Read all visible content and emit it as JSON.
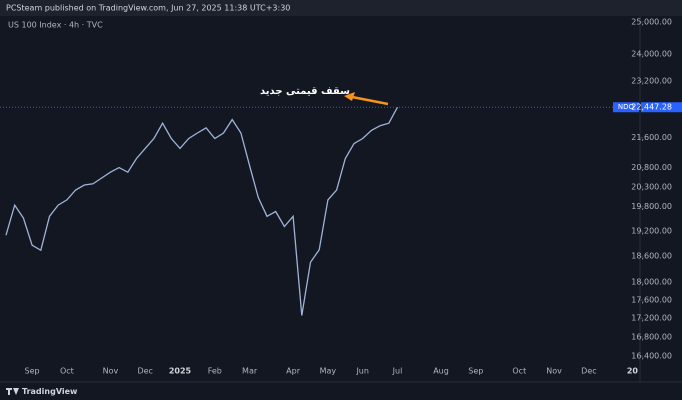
{
  "chart_data": {
    "type": "line",
    "header": "PCSteam published on TradingView.com, Jun 27, 2025 11:38 UTC+3:30",
    "title": "US 100 Index · 4h · TVC",
    "brand": "TradingView",
    "annotation": "سقف قیمتی جدید",
    "log_scale": true,
    "grid": false,
    "categories": [
      null,
      null,
      null,
      "Sep",
      null,
      null,
      null,
      "Oct",
      null,
      null,
      null,
      null,
      "Nov",
      null,
      null,
      null,
      "Dec",
      null,
      null,
      null,
      "2025",
      null,
      null,
      null,
      "Feb",
      null,
      null,
      null,
      "Mar",
      null,
      null,
      null,
      null,
      "Apr",
      null,
      null,
      null,
      "May",
      null,
      null,
      null,
      "Jun",
      null,
      null,
      null,
      "Jul",
      null,
      null,
      null,
      null,
      "Aug",
      null,
      null,
      null,
      "Sep",
      null,
      null,
      null,
      null,
      "Oct",
      null,
      null,
      null,
      "Nov",
      null,
      null,
      null,
      "Dec",
      null,
      null,
      null,
      null,
      "20"
    ],
    "series": [
      {
        "name": "NDQ",
        "color": "#9fb3d9",
        "values": [
          19100,
          19840,
          19520,
          18860,
          18740,
          19560,
          19840,
          19970,
          20220,
          20350,
          20380,
          20530,
          20680,
          20800,
          20680,
          21040,
          21310,
          21580,
          22000,
          21580,
          21310,
          21580,
          21730,
          21870,
          21580,
          21730,
          22100,
          21730,
          20850,
          20030,
          19560,
          19680,
          19310,
          19560,
          17260,
          18460,
          18750,
          19970,
          20220,
          21040,
          21440,
          21580,
          21800,
          21930,
          22000,
          22447.28,
          null,
          null,
          null,
          null,
          null,
          null,
          null,
          null,
          null,
          null,
          null,
          null,
          null,
          null,
          null,
          null,
          null,
          null,
          null,
          null,
          null,
          null,
          null,
          null,
          null,
          null,
          null
        ]
      }
    ],
    "price_line": {
      "name": "NDQ",
      "value": 22447.28,
      "label": "22,447.28"
    },
    "ylim": [
      15950,
      25250
    ],
    "yticks": [
      {
        "value": 16400,
        "label": "16,400.00"
      },
      {
        "value": 16800,
        "label": "16,800.00"
      },
      {
        "value": 17200,
        "label": "17,200.00"
      },
      {
        "value": 17600,
        "label": "17,600.00"
      },
      {
        "value": 18000,
        "label": "18,000.00"
      },
      {
        "value": 18600,
        "label": "18,600.00"
      },
      {
        "value": 19200,
        "label": "19,200.00"
      },
      {
        "value": 19800,
        "label": "19,800.00"
      },
      {
        "value": 20300,
        "label": "20,300.00"
      },
      {
        "value": 20800,
        "label": "20,800.00"
      },
      {
        "value": 21600,
        "label": "21,600.00"
      },
      {
        "value": 23200,
        "label": "23,200.00"
      },
      {
        "value": 24000,
        "label": "24,000.00"
      },
      {
        "value": 25000,
        "label": "25,000.00"
      }
    ]
  }
}
